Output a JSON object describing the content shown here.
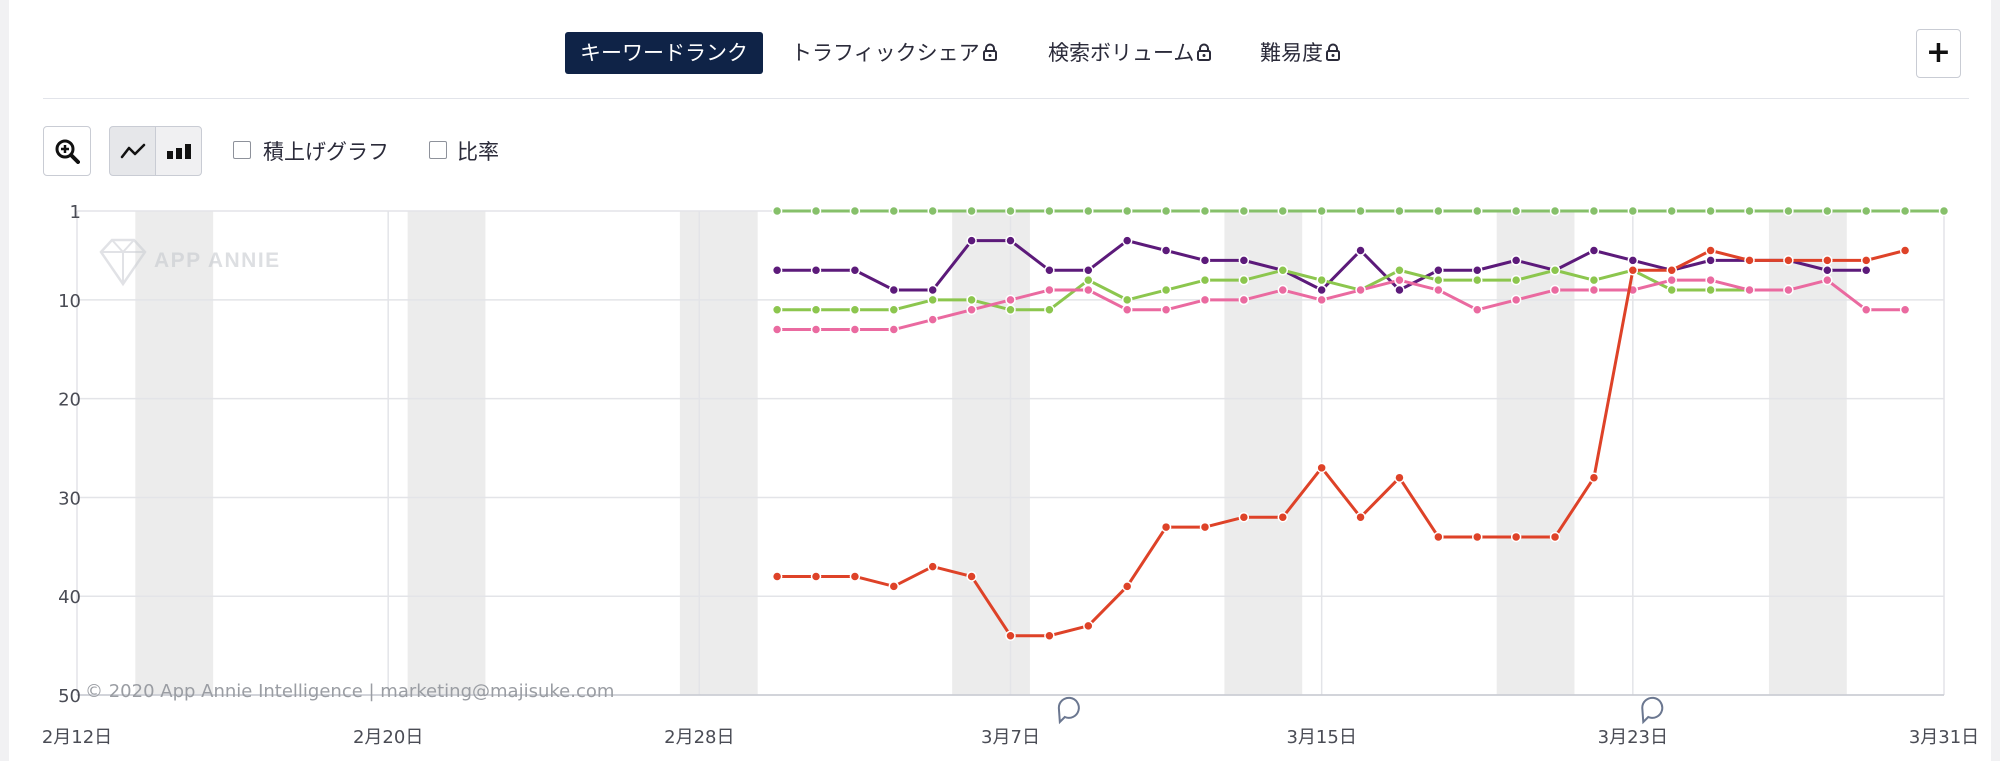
{
  "tabs": [
    {
      "label": "キーワードランク",
      "active": true,
      "locked": false
    },
    {
      "label": "トラフィックシェア",
      "active": false,
      "locked": true
    },
    {
      "label": "検索ボリューム",
      "active": false,
      "locked": true
    },
    {
      "label": "難易度",
      "active": false,
      "locked": true
    }
  ],
  "add_button": "+",
  "toolbar": {
    "zoom_icon": "zoom-in-icon",
    "line_icon": "line-chart-icon",
    "bar_icon": "bar-chart-icon",
    "stacked_label": "積上げグラフ",
    "ratio_label": "比率"
  },
  "watermark": {
    "logo_text": "APP ANNIE"
  },
  "copyright": "© 2020 App Annie Intelligence | marketing@majisuke.com",
  "colors": {
    "active_tab": "#0f2347"
  },
  "chart_data": {
    "type": "line",
    "y_ticks": [
      1,
      10,
      20,
      30,
      40,
      50
    ],
    "ylim": [
      1,
      50
    ],
    "y_inverted": true,
    "x_tick_labels": [
      "2月12日",
      "2月20日",
      "2月28日",
      "3月7日",
      "3月15日",
      "3月23日",
      "3月31日"
    ],
    "x_tick_days": [
      1,
      9,
      17,
      25,
      33,
      41,
      49
    ],
    "xlim": [
      1,
      49
    ],
    "x_start": "2020-02-12",
    "weekend_start_days": [
      2.5,
      9.5,
      16.5,
      23.5,
      30.5,
      37.5,
      44.5
    ],
    "annotation_days": [
      26.5,
      41.5
    ],
    "grid": true,
    "legend": "none",
    "series": [
      {
        "color": "#86c06a",
        "start_day": 19,
        "values": [
          1,
          1,
          1,
          1,
          1,
          1,
          1,
          1,
          1,
          1,
          1,
          1,
          1,
          1,
          1,
          1,
          1,
          1,
          1,
          1,
          1,
          1,
          1,
          1,
          1,
          1,
          1,
          1,
          1,
          1,
          1
        ]
      },
      {
        "color": "#5c1a7a",
        "start_day": 19,
        "values": [
          7,
          7,
          7,
          9,
          9,
          4,
          4,
          7,
          7,
          4,
          5,
          6,
          6,
          7,
          9,
          5,
          9,
          7,
          7,
          6,
          7,
          5,
          6,
          7,
          6,
          6,
          6,
          7,
          7
        ]
      },
      {
        "color": "#8cc64e",
        "start_day": 19,
        "values": [
          11,
          11,
          11,
          11,
          10,
          10,
          11,
          11,
          8,
          10,
          9,
          8,
          8,
          7,
          8,
          9,
          7,
          8,
          8,
          8,
          7,
          8,
          7,
          9,
          9,
          9
        ]
      },
      {
        "color": "#ea6aa0",
        "start_day": 19,
        "values": [
          13,
          13,
          13,
          13,
          12,
          11,
          10,
          9,
          9,
          11,
          11,
          10,
          10,
          9,
          10,
          9,
          8,
          9,
          11,
          10,
          9,
          9,
          9,
          8,
          8,
          9,
          9,
          8,
          11,
          11
        ]
      },
      {
        "color": "#de4228",
        "start_day": 19,
        "values": [
          38,
          38,
          38,
          39,
          37,
          38,
          44,
          44,
          43,
          39,
          33,
          33,
          32,
          32,
          27,
          32,
          28,
          34,
          34,
          34,
          34,
          28,
          7,
          7,
          5,
          6,
          6,
          6,
          6,
          5
        ]
      }
    ]
  }
}
